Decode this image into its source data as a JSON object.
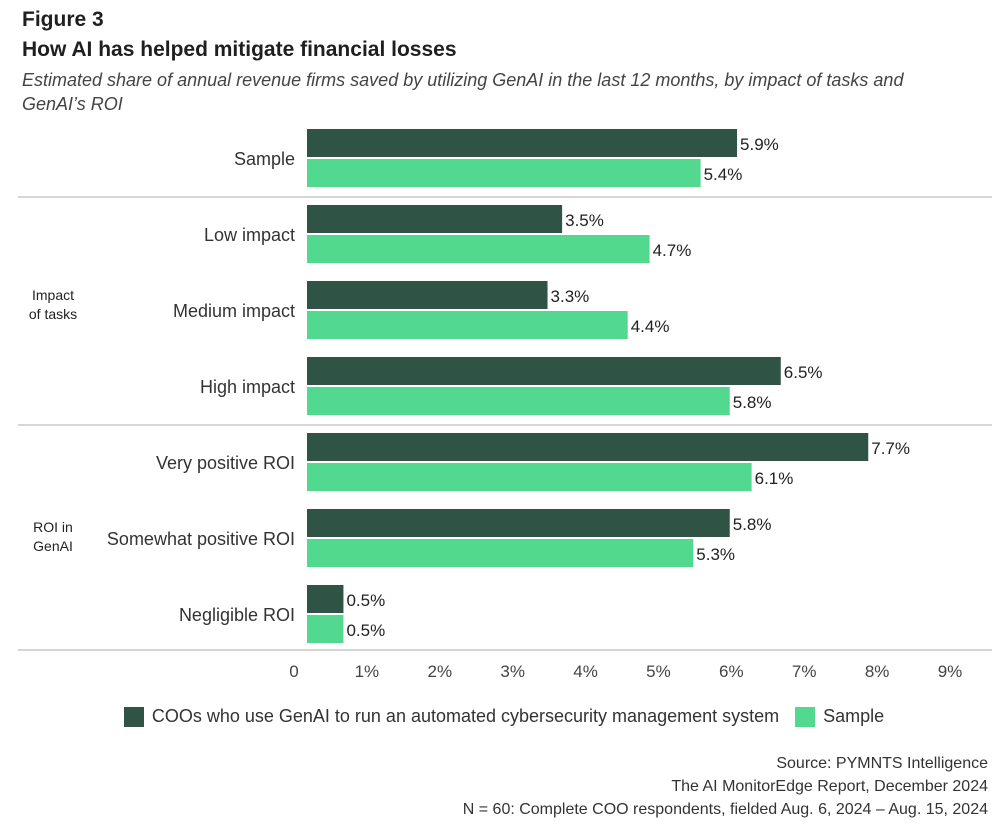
{
  "figure": {
    "label": "Figure 3",
    "title": "How AI has helped mitigate financial losses",
    "subtitle": "Estimated share of annual revenue firms saved by utilizing GenAI in the last 12 months, by impact of tasks and GenAI’s ROI"
  },
  "colors": {
    "dark": "#2f5446",
    "light": "#52d98f",
    "divider": "#c8c8c8"
  },
  "chart_data": {
    "type": "bar",
    "orientation": "horizontal",
    "categories": [
      "Sample",
      "Low impact",
      "Medium impact",
      "High impact",
      "Very positive ROI",
      "Somewhat positive ROI",
      "Negligible ROI"
    ],
    "groups": [
      {
        "label": "",
        "categories": [
          "Sample"
        ]
      },
      {
        "label": "Impact of tasks",
        "label_lines": [
          "Impact",
          "of tasks"
        ],
        "categories": [
          "Low impact",
          "Medium impact",
          "High impact"
        ]
      },
      {
        "label": "ROI in GenAI",
        "label_lines": [
          "ROI in",
          "GenAI"
        ],
        "categories": [
          "Very positive ROI",
          "Somewhat positive ROI",
          "Negligible ROI"
        ]
      }
    ],
    "series": [
      {
        "name": "COOs who use GenAI to run an automated cybersecurity management system",
        "values": [
          5.9,
          3.5,
          3.3,
          6.5,
          7.7,
          5.8,
          0.5
        ],
        "value_labels": [
          "5.9%",
          "3.5%",
          "3.3%",
          "6.5%",
          "7.7%",
          "5.8%",
          "0.5%"
        ]
      },
      {
        "name": "Sample",
        "values": [
          5.4,
          4.7,
          4.4,
          5.8,
          6.1,
          5.3,
          0.5
        ],
        "value_labels": [
          "5.4%",
          "4.7%",
          "4.4%",
          "5.8%",
          "6.1%",
          "5.3%",
          "0.5%"
        ]
      }
    ],
    "xlim": [
      0,
      9
    ],
    "x_ticks": [
      0,
      1,
      2,
      3,
      4,
      5,
      6,
      7,
      8,
      9
    ],
    "x_tick_labels": [
      "0",
      "1%",
      "2%",
      "3%",
      "4%",
      "5%",
      "6%",
      "7%",
      "8%",
      "9%"
    ],
    "grid": false,
    "legend_position": "bottom"
  },
  "legend": {
    "items": [
      {
        "label": "COOs who use GenAI to run an automated cybersecurity management system",
        "color": "#2f5446"
      },
      {
        "label": "Sample",
        "color": "#52d98f"
      }
    ]
  },
  "source": {
    "line1": "Source: PYMNTS Intelligence",
    "line2": "The AI MonitorEdge Report, December 2024",
    "line3": "N = 60: Complete COO respondents, fielded Aug. 6, 2024 – Aug. 15, 2024"
  }
}
